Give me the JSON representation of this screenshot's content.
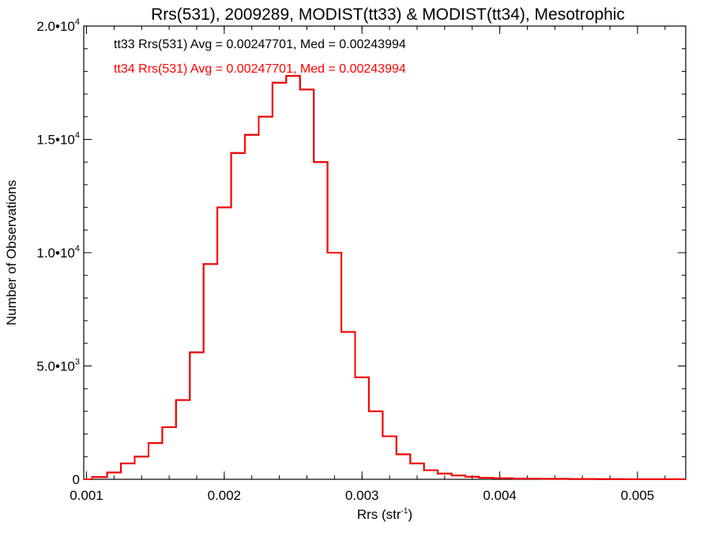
{
  "chart_data": {
    "type": "line",
    "title": "Rrs(531), 2009289, MODIST(tt33) & MODIST(tt34), Mesotrophic",
    "xlabel": "Rrs (str",
    "xlabel_sup": "-1",
    "xlabel_close": ")",
    "ylabel": "Number of Observations",
    "xlim": [
      0.00098,
      0.00535
    ],
    "ylim": [
      0,
      20000
    ],
    "x_ticks": [
      {
        "value": 0.001,
        "label": "0.001"
      },
      {
        "value": 0.002,
        "label": "0.002"
      },
      {
        "value": 0.003,
        "label": "0.003"
      },
      {
        "value": 0.004,
        "label": "0.004"
      },
      {
        "value": 0.005,
        "label": "0.005"
      }
    ],
    "y_ticks": [
      {
        "value": 0,
        "label": "0",
        "sup": ""
      },
      {
        "value": 5000,
        "label": "5.0•10",
        "sup": "3"
      },
      {
        "value": 10000,
        "label": "1.0•10",
        "sup": "4"
      },
      {
        "value": 15000,
        "label": "1.5•10",
        "sup": "4"
      },
      {
        "value": 20000,
        "label": "2.0•10",
        "sup": "4"
      }
    ],
    "annotations": [
      {
        "text": "tt33 Rrs(531) Avg = 0.00247701, Med = 0.00243994",
        "color": "#000000"
      },
      {
        "text": "tt34 Rrs(531) Avg = 0.00247701, Med = 0.00243994",
        "color": "#ff0000"
      }
    ],
    "series": [
      {
        "color": "#000000",
        "x": [
          0.00098,
          0.0011,
          0.0012,
          0.0013,
          0.0014,
          0.0015,
          0.0016,
          0.0017,
          0.0018,
          0.0019,
          0.002,
          0.0021,
          0.0022,
          0.0023,
          0.0024,
          0.0025,
          0.0026,
          0.0027,
          0.0028,
          0.0029,
          0.003,
          0.0031,
          0.0032,
          0.0033,
          0.0034,
          0.0035,
          0.0036,
          0.0037,
          0.0038,
          0.0039,
          0.004,
          0.0042,
          0.0044,
          0.0046,
          0.0048,
          0.005,
          0.0052,
          0.00535
        ],
        "y": [
          0,
          100,
          300,
          700,
          1000,
          1600,
          2300,
          3500,
          5600,
          9500,
          12000,
          14400,
          15200,
          16000,
          17500,
          17800,
          17200,
          14000,
          10000,
          6500,
          4500,
          3000,
          1900,
          1100,
          700,
          400,
          250,
          170,
          110,
          70,
          50,
          30,
          20,
          15,
          10,
          5,
          3,
          2
        ]
      },
      {
        "color": "#ff0000",
        "x": [
          0.00098,
          0.0011,
          0.0012,
          0.0013,
          0.0014,
          0.0015,
          0.0016,
          0.0017,
          0.0018,
          0.0019,
          0.002,
          0.0021,
          0.0022,
          0.0023,
          0.0024,
          0.0025,
          0.0026,
          0.0027,
          0.0028,
          0.0029,
          0.003,
          0.0031,
          0.0032,
          0.0033,
          0.0034,
          0.0035,
          0.0036,
          0.0037,
          0.0038,
          0.0039,
          0.004,
          0.0042,
          0.0044,
          0.0046,
          0.0048,
          0.005,
          0.0052,
          0.00535
        ],
        "y": [
          0,
          100,
          300,
          700,
          1000,
          1600,
          2300,
          3500,
          5600,
          9500,
          12000,
          14400,
          15200,
          16000,
          17500,
          17800,
          17200,
          14000,
          10000,
          6500,
          4500,
          3000,
          1900,
          1100,
          700,
          400,
          250,
          170,
          110,
          70,
          50,
          30,
          20,
          15,
          10,
          5,
          3,
          2
        ]
      }
    ],
    "grid": false,
    "legend": "top-left"
  }
}
